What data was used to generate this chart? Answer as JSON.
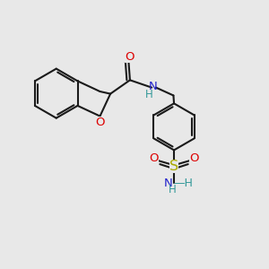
{
  "bg_color": "#e8e8e8",
  "bond_color": "#1a1a1a",
  "lw": 1.5,
  "fs": 9.5,
  "dpi": 100,
  "figsize": [
    3.0,
    3.0
  ],
  "xlim": [
    0,
    10
  ],
  "ylim": [
    0,
    10
  ],
  "dbi": 0.09,
  "inner_r": 0.73,
  "shorten": 0.11,
  "colors": {
    "O": "#dd0000",
    "N": "#2222cc",
    "S": "#aaaa00",
    "H": "#339999",
    "C": "#1a1a1a"
  }
}
